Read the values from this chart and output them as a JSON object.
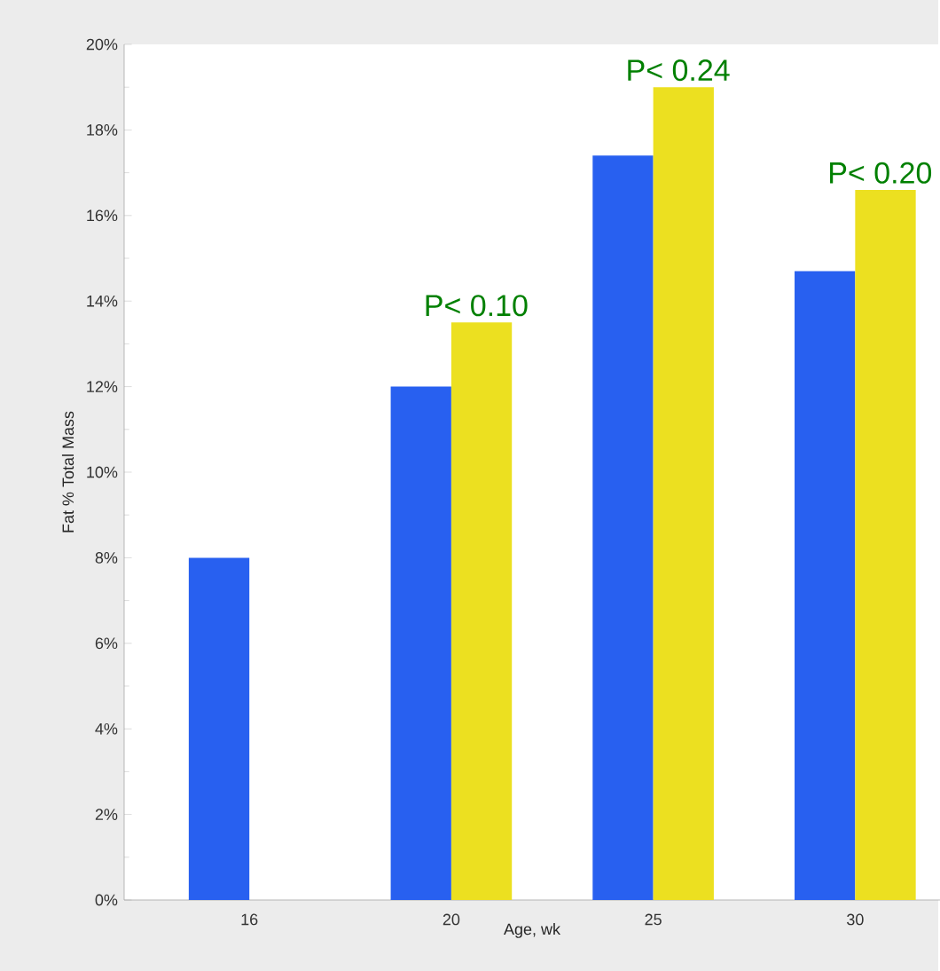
{
  "chart_data": {
    "type": "bar",
    "xlabel": "Age, wk",
    "ylabel": "Fat % Total Mass",
    "categories": [
      "16",
      "20",
      "25",
      "30"
    ],
    "series": [
      {
        "color": "#2860f0",
        "values": [
          8.0,
          12.0,
          17.4,
          14.7
        ]
      },
      {
        "color": "#ece020",
        "values": [
          null,
          13.5,
          19.0,
          16.6
        ]
      }
    ],
    "ylim": [
      0,
      20
    ],
    "yticks": [
      {
        "value": 0,
        "label": "0%"
      },
      {
        "value": 2,
        "label": "2%"
      },
      {
        "value": 4,
        "label": "4%"
      },
      {
        "value": 6,
        "label": "6%"
      },
      {
        "value": 8,
        "label": "8%"
      },
      {
        "value": 10,
        "label": "10%"
      },
      {
        "value": 12,
        "label": "12%"
      },
      {
        "value": 14,
        "label": "14%"
      },
      {
        "value": 16,
        "label": "16%"
      },
      {
        "value": 18,
        "label": "18%"
      },
      {
        "value": 20,
        "label": "20%"
      }
    ],
    "annotations": [
      {
        "text": "P< 0.10",
        "x": "20",
        "y": 13.5
      },
      {
        "text": "P< 0.24",
        "x": "25",
        "y": 19.0
      },
      {
        "text": "P< 0.20",
        "x": "30",
        "y": 16.6
      }
    ]
  }
}
